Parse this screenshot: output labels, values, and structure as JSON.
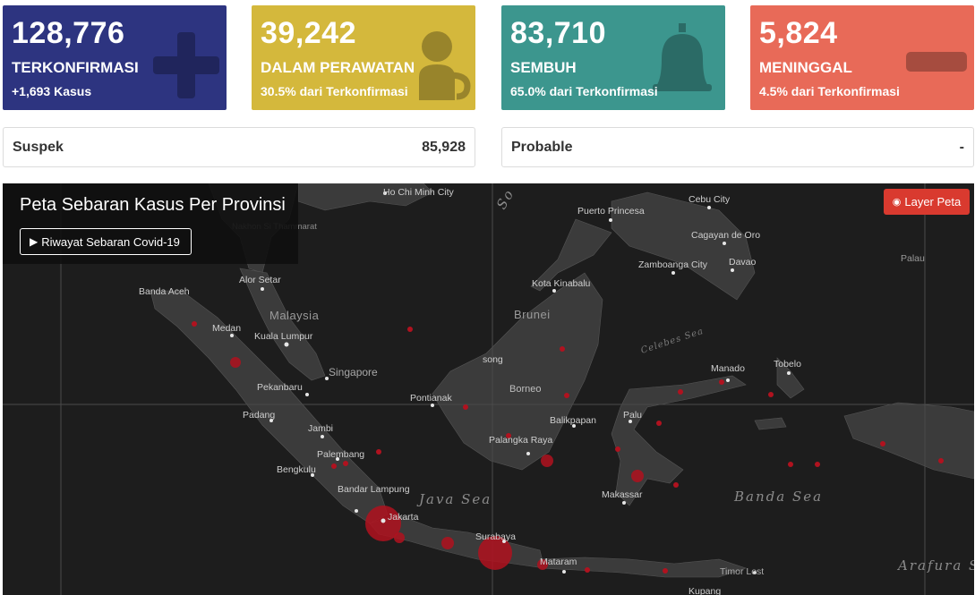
{
  "cards": [
    {
      "number": "128,776",
      "label": "TERKONFIRMASI",
      "sub": "+1,693 Kasus",
      "color": "#2d3480",
      "icon": "plus-icon"
    },
    {
      "number": "39,242",
      "label": "DALAM PERAWATAN",
      "sub": "30.5% dari Terkonfirmasi",
      "color": "#d4b83c",
      "icon": "patient-icon"
    },
    {
      "number": "83,710",
      "label": "SEMBUH",
      "sub": "65.0% dari Terkonfirmasi",
      "color": "#3c968e",
      "icon": "bell-icon"
    },
    {
      "number": "5,824",
      "label": "MENINGGAL",
      "sub": "4.5% dari Terkonfirmasi",
      "color": "#e86a58",
      "icon": "minus-icon"
    }
  ],
  "stats": {
    "suspek": {
      "label": "Suspek",
      "value": "85,928"
    },
    "probable": {
      "label": "Probable",
      "value": "-"
    }
  },
  "map": {
    "title": "Peta Sebaran Kasus Per Provinsi",
    "history_button": "Riwayat Sebaran Covid-19",
    "layer_button": "Layer Peta",
    "cities": [
      "Ho Chi Minh City",
      "Nakhon Si Thammarat",
      "Banda Aceh",
      "Alor Setar",
      "Medan",
      "Kuala Lumpur",
      "Singapore",
      "Pekanbaru",
      "Padang",
      "Jambi",
      "Palembang",
      "Bengkulu",
      "Bandar Lampung",
      "Jakarta",
      "Surabaya",
      "Mataram",
      "Pontianak",
      "song",
      "Borneo",
      "Palangka Raya",
      "Balikpapan",
      "Palu",
      "Makassar",
      "Kota Kinabalu",
      "Puerto Princesa",
      "Cebu City",
      "Cagayan de Oro",
      "Zamboanga City",
      "Davao",
      "Manado",
      "Tobelo",
      "Palau",
      "Timor Lest",
      "Kupang"
    ],
    "countries": [
      "Malaysia",
      "Brunei"
    ],
    "seas": [
      "Java Sea",
      "Banda Sea",
      "Celebes Sea",
      "Arafura Sea",
      "So"
    ],
    "accent": "#d93a2f",
    "bubble_color": "#b0121f"
  }
}
